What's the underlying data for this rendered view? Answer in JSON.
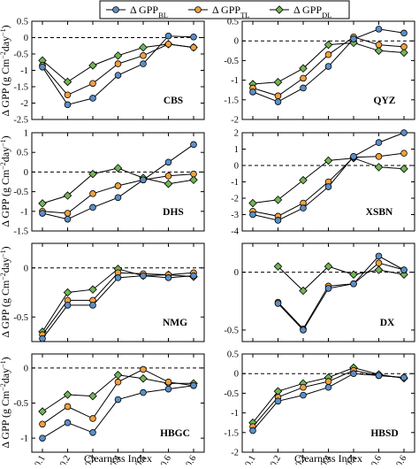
{
  "chart_data": {
    "type": "line",
    "legend": {
      "placement": "top-center",
      "entries": [
        {
          "prefix": "Δ GPP",
          "subscript": "BL"
        },
        {
          "prefix": "Δ GPP",
          "subscript": "TL"
        },
        {
          "prefix": "Δ GPP",
          "subscript": "DL"
        }
      ]
    },
    "colors": {
      "BL": "#5b8fc7",
      "TL": "#f0a040",
      "DL": "#72b555",
      "line": "#000000",
      "zero_line": "#000000"
    },
    "markers": {
      "BL": "circle",
      "TL": "circle",
      "DL": "diamond"
    },
    "xlabel": "Clearness Index",
    "ylabel": {
      "prefix": "Δ GPP (g Cm",
      "exp1": "−2",
      "middle": "day",
      "exp2": "−1",
      "suffix": ")"
    },
    "categories": [
      "<0.1",
      "0.1–0.2",
      "0.2–0.3",
      "0.3–0.4",
      "0.4–0.5",
      "0.5–0.6",
      ">0.6"
    ],
    "reference_line": 0,
    "panels": [
      {
        "name": "CBS",
        "ylim": [
          -2.5,
          0.5
        ],
        "yticks": [
          0.5,
          0,
          -0.5,
          -1,
          -1.5,
          -2,
          -2.5
        ],
        "ytick_labels": [
          "0.5",
          "0",
          "-0.5",
          "-1",
          "-1.5",
          "-2",
          "-2.5"
        ],
        "series": [
          {
            "key": "BL",
            "values": [
              -0.9,
              -2.05,
              -1.85,
              -1.15,
              -0.8,
              0.05,
              0.02
            ]
          },
          {
            "key": "TL",
            "values": [
              -0.85,
              -1.75,
              -1.4,
              -0.8,
              -0.55,
              -0.2,
              -0.3
            ]
          },
          {
            "key": "DL",
            "values": [
              -0.7,
              -1.35,
              -0.85,
              -0.55,
              -0.3,
              -0.2,
              -0.3
            ]
          }
        ]
      },
      {
        "name": "QYZ",
        "ylim": [
          -2,
          0.5
        ],
        "yticks": [
          0.5,
          0,
          -0.5,
          -1,
          -1.5,
          -2
        ],
        "ytick_labels": [
          "0.5",
          "0",
          "-0.5",
          "-1",
          "-1.5",
          "-2"
        ],
        "series": [
          {
            "key": "BL",
            "values": [
              -1.3,
              -1.55,
              -1.2,
              -0.65,
              0.05,
              0.3,
              0.2
            ]
          },
          {
            "key": "TL",
            "values": [
              -1.2,
              -1.4,
              -0.95,
              -0.35,
              0.1,
              -0.1,
              -0.15
            ]
          },
          {
            "key": "DL",
            "values": [
              -1.1,
              -1.05,
              -0.7,
              -0.1,
              -0.05,
              -0.25,
              -0.3
            ]
          }
        ]
      },
      {
        "name": "DHS",
        "ylim": [
          -1.5,
          1
        ],
        "yticks": [
          1,
          0.5,
          0,
          -0.5,
          -1,
          -1.5
        ],
        "ytick_labels": [
          "1",
          "0.5",
          "0",
          "-0.5",
          "-1",
          "-1.5"
        ],
        "series": [
          {
            "key": "BL",
            "values": [
              -1.05,
              -1.2,
              -0.9,
              -0.65,
              -0.2,
              0.25,
              0.7
            ]
          },
          {
            "key": "TL",
            "values": [
              -1.0,
              -1.05,
              -0.55,
              -0.35,
              -0.2,
              -0.1,
              -0.05
            ]
          },
          {
            "key": "DL",
            "values": [
              -0.8,
              -0.6,
              -0.05,
              0.1,
              -0.15,
              -0.3,
              -0.2
            ]
          }
        ]
      },
      {
        "name": "XSBN",
        "ylim": [
          -4,
          2
        ],
        "yticks": [
          2,
          1,
          0,
          -1,
          -2,
          -3,
          -4
        ],
        "ytick_labels": [
          "2",
          "1",
          "0",
          "-1",
          "-2",
          "-3",
          "-4"
        ],
        "series": [
          {
            "key": "BL",
            "values": [
              -3.0,
              -3.35,
              -2.6,
              -1.3,
              0.55,
              1.4,
              2.0
            ]
          },
          {
            "key": "TL",
            "values": [
              -2.8,
              -3.1,
              -2.3,
              -1.0,
              0.5,
              0.55,
              0.75
            ]
          },
          {
            "key": "DL",
            "values": [
              -2.3,
              -2.1,
              -0.9,
              0.3,
              0.45,
              -0.1,
              -0.2
            ]
          }
        ]
      },
      {
        "name": "NMG",
        "ylim": [
          -0.75,
          0.25
        ],
        "yticks": [
          0,
          -0.5
        ],
        "ytick_labels": [
          "0",
          "-0.5"
        ],
        "series": [
          {
            "key": "BL",
            "values": [
              -0.72,
              -0.38,
              -0.38,
              -0.1,
              -0.08,
              -0.1,
              -0.08
            ]
          },
          {
            "key": "TL",
            "values": [
              -0.68,
              -0.33,
              -0.33,
              -0.05,
              -0.06,
              -0.07,
              -0.05
            ]
          },
          {
            "key": "DL",
            "values": [
              -0.65,
              -0.25,
              -0.22,
              -0.01,
              -0.08,
              -0.07,
              -0.09
            ]
          }
        ]
      },
      {
        "name": "DX",
        "ylim": [
          -0.6,
          0.25
        ],
        "yticks": [
          0,
          -0.5
        ],
        "ytick_labels": [
          "0",
          "-0.5"
        ],
        "series": [
          {
            "key": "BL",
            "values": [
              null,
              -0.27,
              -0.5,
              -0.14,
              -0.1,
              0.14,
              0.02
            ]
          },
          {
            "key": "TL",
            "values": [
              null,
              -0.26,
              -0.49,
              -0.12,
              -0.1,
              0.08,
              0.02
            ]
          },
          {
            "key": "DL",
            "values": [
              null,
              0.05,
              -0.16,
              0.05,
              -0.02,
              0.02,
              -0.02
            ]
          }
        ]
      },
      {
        "name": "HBGC",
        "ylim": [
          -1.2,
          0.2
        ],
        "yticks": [
          0,
          -0.5,
          -1
        ],
        "ytick_labels": [
          "0",
          "-0.5",
          "-1"
        ],
        "series": [
          {
            "key": "BL",
            "values": [
              -1.0,
              -0.78,
              -0.92,
              -0.45,
              -0.35,
              -0.3,
              -0.25
            ]
          },
          {
            "key": "TL",
            "values": [
              -0.8,
              -0.55,
              -0.72,
              -0.2,
              -0.02,
              -0.2,
              -0.25
            ]
          },
          {
            "key": "DL",
            "values": [
              -0.62,
              -0.38,
              -0.4,
              -0.1,
              -0.15,
              -0.22,
              -0.22
            ]
          }
        ]
      },
      {
        "name": "HBSD",
        "ylim": [
          -2,
          0.5
        ],
        "yticks": [
          0.5,
          0,
          -0.5,
          -1,
          -1.5,
          -2
        ],
        "ytick_labels": [
          "0.5",
          "0",
          "-0.5",
          "-1",
          "-1.5",
          "-2"
        ],
        "series": [
          {
            "key": "BL",
            "values": [
              -1.45,
              -0.7,
              -0.55,
              -0.35,
              0.0,
              -0.05,
              -0.1
            ]
          },
          {
            "key": "TL",
            "values": [
              -1.35,
              -0.6,
              -0.35,
              -0.2,
              0.08,
              -0.05,
              -0.1
            ]
          },
          {
            "key": "DL",
            "values": [
              -1.25,
              -0.45,
              -0.25,
              -0.1,
              0.15,
              -0.02,
              -0.12
            ]
          }
        ]
      }
    ]
  }
}
